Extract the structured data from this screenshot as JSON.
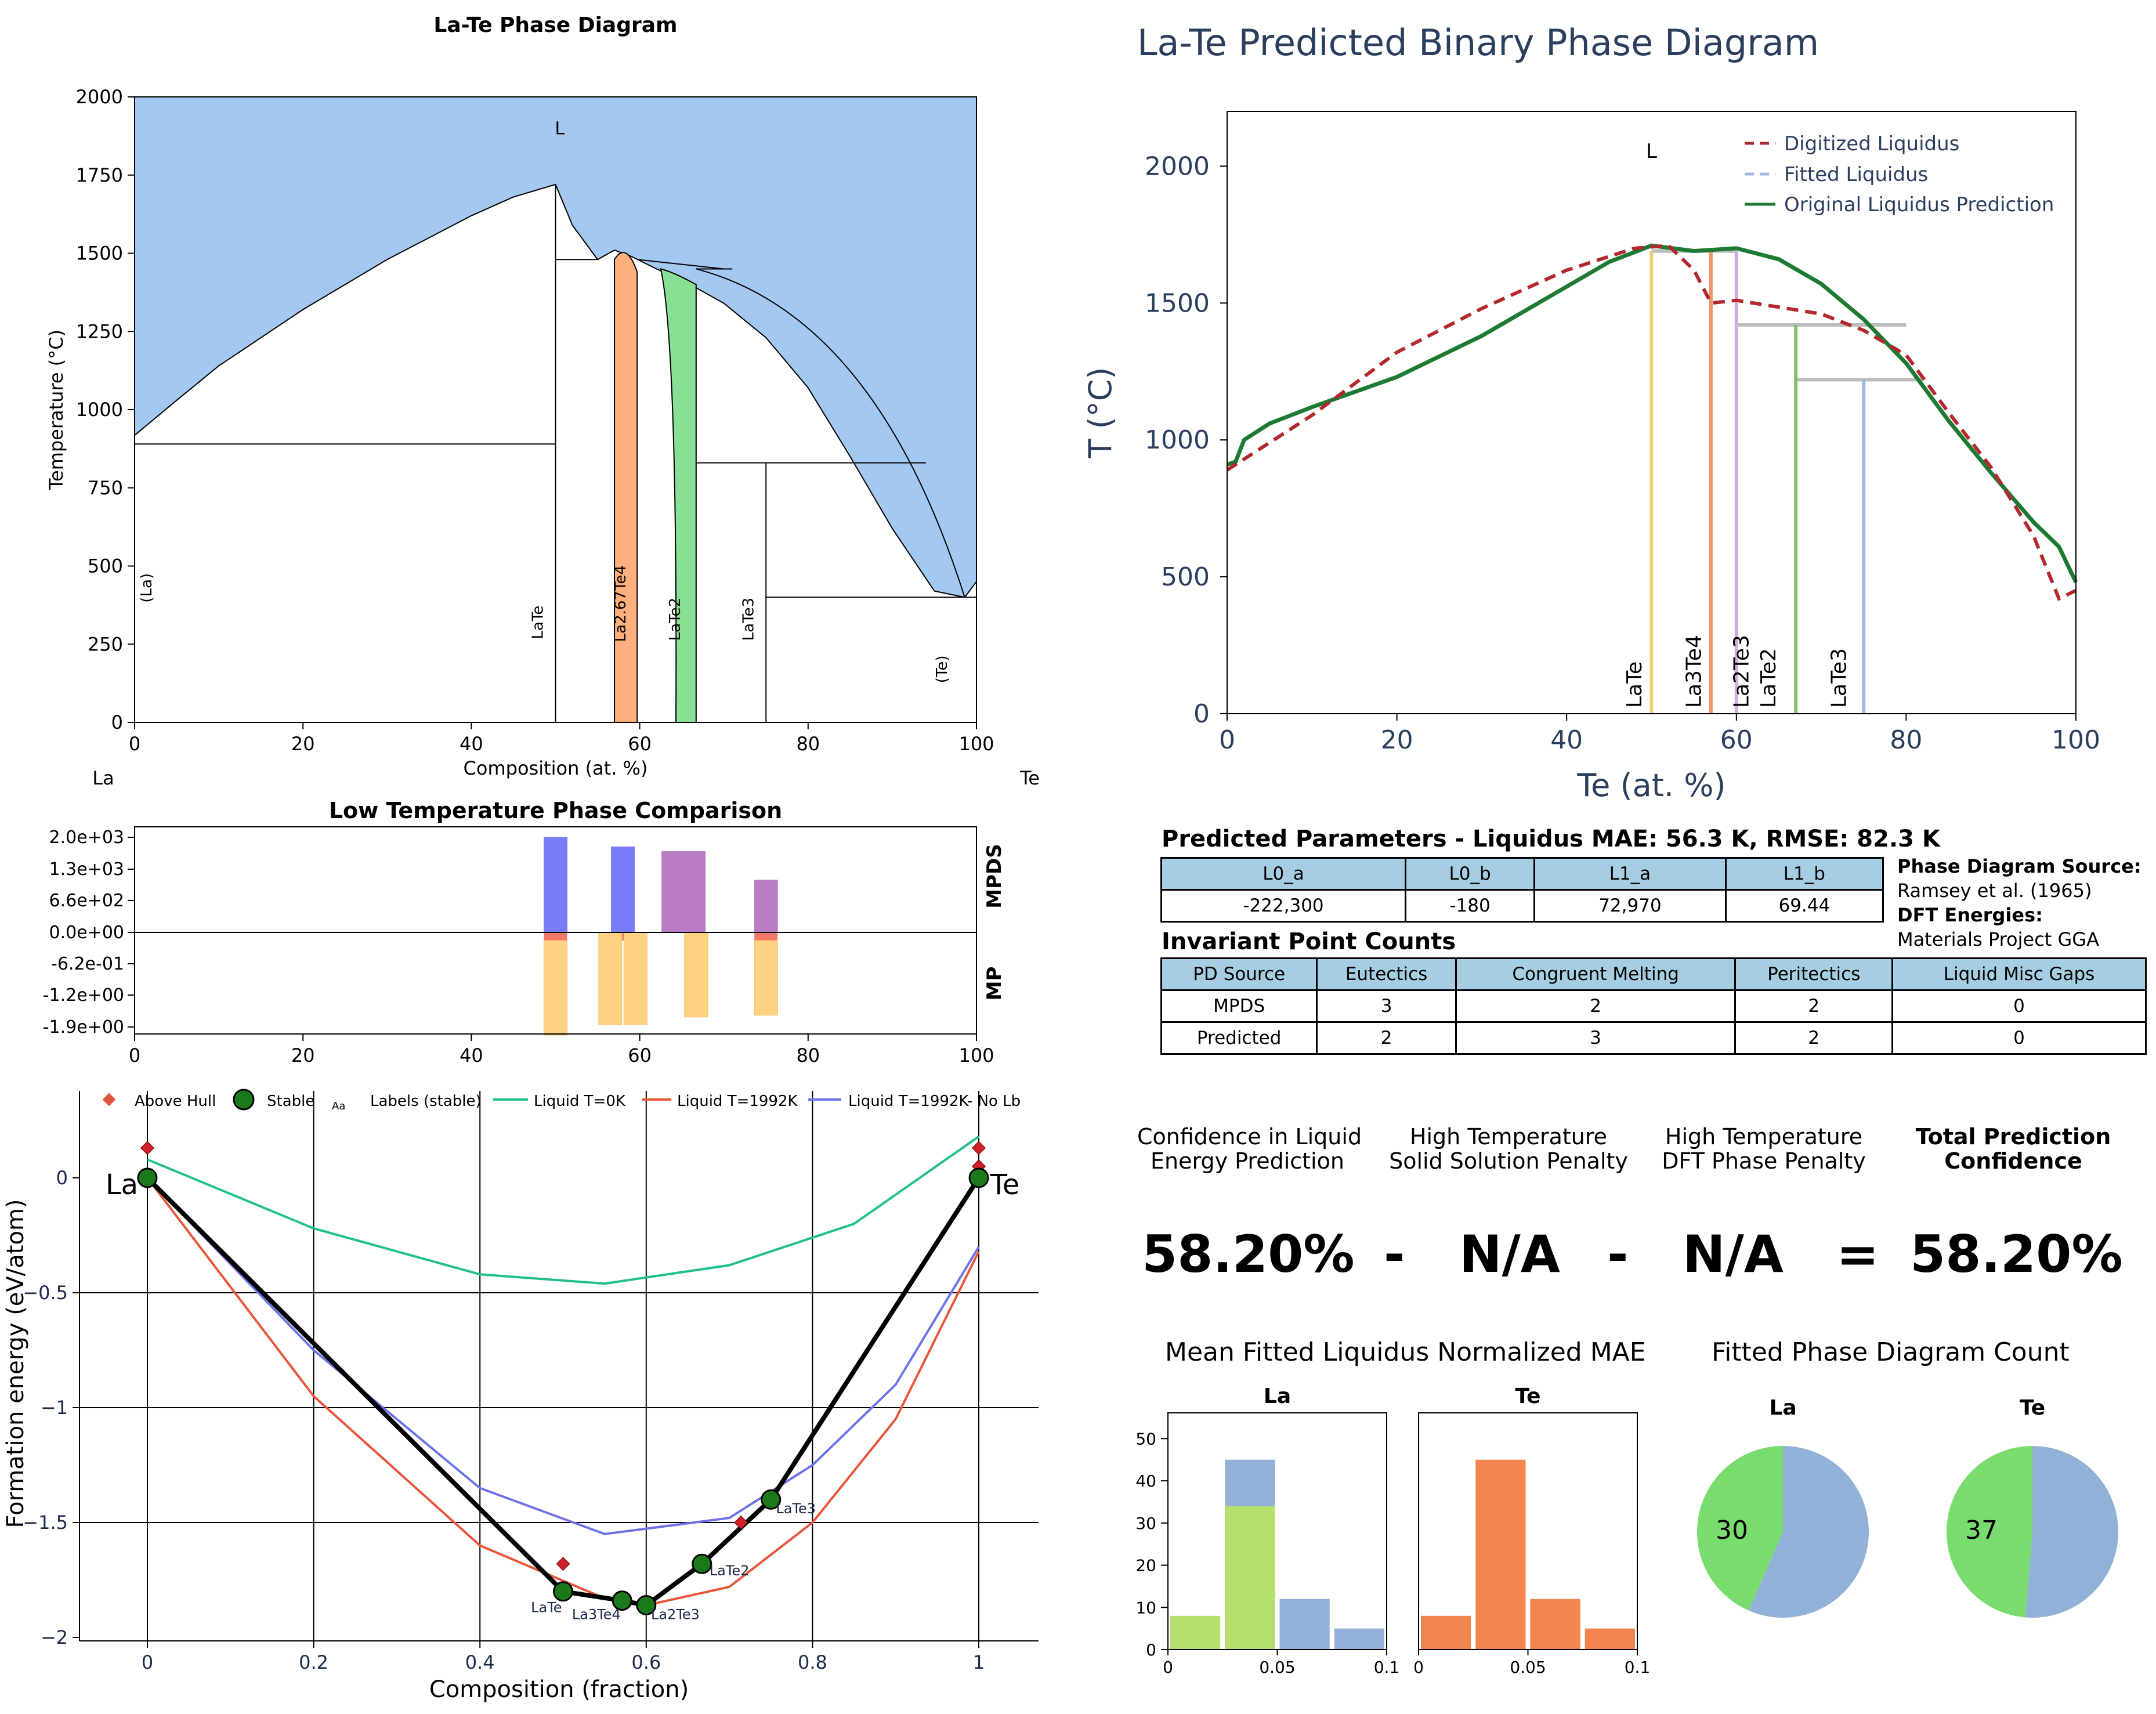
{
  "phase_diagram": {
    "title": "La-Te Phase Diagram",
    "xlabel": "Composition (at. %)",
    "ylabel": "Temperature (°C)",
    "left_element": "La",
    "right_element": "Te",
    "liquid_label": "L",
    "phase_labels": [
      "(La)",
      "LaTe",
      "La2.67Te4",
      "LaTe2",
      "LaTe3",
      "(Te)"
    ],
    "xticks": [
      "0",
      "20",
      "40",
      "60",
      "80",
      "100"
    ],
    "yticks": [
      "0",
      "250",
      "500",
      "750",
      "1000",
      "1250",
      "1500",
      "1750",
      "2000"
    ],
    "colors": {
      "liquid": "#a3c9f3",
      "La2.67Te4": "#fdb07b",
      "LaTe2": "#89df93"
    }
  },
  "low_temp": {
    "title": "Low Temperature Phase Comparison",
    "yticks": [
      "2.0e+03",
      "1.3e+03",
      "6.6e+02",
      "0.0e+00",
      "-6.2e-01",
      "-1.2e+00",
      "-1.9e+00"
    ],
    "xticks": [
      "0",
      "20",
      "40",
      "60",
      "80",
      "100"
    ],
    "right_top": "MPDS",
    "right_bottom": "MP"
  },
  "hull": {
    "xlabel": "Composition (fraction)",
    "ylabel": "Formation energy (eV/atom)",
    "xticks": [
      "0",
      "0.2",
      "0.4",
      "0.6",
      "0.8",
      "1"
    ],
    "yticks": [
      "0",
      "−0.5",
      "−1",
      "−1.5",
      "−2"
    ],
    "legend": [
      "Above Hull",
      "Stable",
      "Labels (stable)",
      "Liquid T=0K",
      "Liquid T=1992K",
      "Liquid T=1992K- No Lb"
    ],
    "legend_aa": "Aa",
    "end_left": "La",
    "end_right": "Te",
    "point_labels": [
      "LaTe",
      "La3Te4",
      "La2Te3",
      "LaTe2",
      "LaTe3"
    ]
  },
  "predicted": {
    "title": "La-Te Predicted Binary Phase Diagram",
    "xlabel": "Te (at. %)",
    "ylabel": "T (°C)",
    "liquid_label": "L",
    "xticks": [
      "0",
      "20",
      "40",
      "60",
      "80",
      "100"
    ],
    "yticks": [
      "0",
      "500",
      "1000",
      "1500",
      "2000"
    ],
    "legend": [
      "Digitized Liquidus",
      "Fitted Liquidus",
      "Original Liquidus Prediction"
    ],
    "phase_labels": [
      "LaTe",
      "La3Te4",
      "La2Te3",
      "LaTe2",
      "LaTe3"
    ]
  },
  "params": {
    "title": "Predicted Parameters - Liquidus MAE: 56.3 K, RMSE: 82.3 K",
    "headers": [
      "L0_a",
      "L0_b",
      "L1_a",
      "L1_b"
    ],
    "values": [
      "-222,300",
      "-180",
      "72,970",
      "69.44"
    ]
  },
  "source": {
    "pd_label": "Phase Diagram Source:",
    "pd_value": "Ramsey et al. (1965)",
    "dft_label": "DFT Energies:",
    "dft_value": "Materials Project GGA"
  },
  "invariants": {
    "title": "Invariant Point Counts",
    "headers": [
      "PD Source",
      "Eutectics",
      "Congruent Melting",
      "Peritectics",
      "Liquid Misc Gaps"
    ],
    "rows": [
      [
        "MPDS",
        "3",
        "2",
        "2",
        "0"
      ],
      [
        "Predicted",
        "2",
        "3",
        "2",
        "0"
      ]
    ]
  },
  "confidence": {
    "label1": "Confidence in Liquid Energy Prediction",
    "label1a": "Confidence in Liquid",
    "label1b": "Energy Prediction",
    "label2a": "High Temperature",
    "label2b": "Solid Solution Penalty",
    "label3a": "High Temperature",
    "label3b": "DFT Phase Penalty",
    "label4a": "Total Prediction",
    "label4b": "Confidence",
    "value1": "58.20%",
    "op1": "-",
    "value2": "N/A",
    "op2": "-",
    "value3": "N/A",
    "op3": "=",
    "value4": "58.20%"
  },
  "mae_hist": {
    "title": "Mean Fitted Liquidus Normalized MAE",
    "panels": [
      "La",
      "Te"
    ],
    "yticks": [
      "0",
      "10",
      "20",
      "30",
      "40",
      "50"
    ],
    "xticks": [
      "0",
      "0.05",
      "0.1"
    ]
  },
  "count_pie": {
    "title": "Fitted Phase Diagram Count",
    "panels": [
      "La",
      "Te"
    ],
    "labels": [
      "30",
      "37"
    ]
  },
  "chart_data": [
    {
      "type": "area",
      "title": "La-Te Phase Diagram",
      "xlabel": "Composition (at. %)",
      "ylabel": "Temperature (°C)",
      "xlim": [
        0,
        100
      ],
      "ylim": [
        0,
        2000
      ],
      "liquidus": {
        "x": [
          0,
          5,
          10,
          20,
          30,
          40,
          45,
          50,
          52,
          55,
          57,
          59,
          62,
          66,
          70,
          75,
          80,
          85,
          90,
          95,
          98.6,
          100
        ],
        "y": [
          918,
          1030,
          1140,
          1320,
          1480,
          1620,
          1680,
          1720,
          1590,
          1480,
          1510,
          1490,
          1450,
          1400,
          1340,
          1230,
          1070,
          850,
          620,
          420,
          400,
          450
        ]
      },
      "invariants_T": [
        890,
        1480,
        1450,
        830,
        400
      ],
      "phases": [
        {
          "name": "LaTe",
          "x": 50,
          "melt": 1720
        },
        {
          "name": "La2.67Te4",
          "x_range": [
            57,
            59.7
          ],
          "melt": 1510
        },
        {
          "name": "LaTe2",
          "x_range": [
            62.5,
            66.7
          ],
          "melt": 1450
        },
        {
          "name": "LaTe3",
          "x": 75,
          "melt": 830
        }
      ]
    },
    {
      "type": "bar",
      "title": "Low Temperature Phase Comparison",
      "series": [
        {
          "name": "MPDS",
          "x": [
            50,
            58,
            64,
            75
          ],
          "values": [
            2000,
            1800,
            1700,
            1100
          ]
        },
        {
          "name": "MP",
          "x": [
            50,
            56.5,
            59.5,
            66.7,
            75
          ],
          "values": [
            -1.9,
            -1.85,
            -1.85,
            -1.7,
            -1.5
          ]
        }
      ],
      "xlim": [
        0,
        100
      ]
    },
    {
      "type": "line",
      "xlabel": "Composition (fraction)",
      "ylabel": "Formation energy (eV/atom)",
      "xlim": [
        0,
        1
      ],
      "ylim": [
        -2,
        0.2
      ],
      "hull": {
        "x": [
          0,
          0.5,
          0.571,
          0.6,
          0.667,
          0.75,
          1
        ],
        "y": [
          0,
          -1.8,
          -1.84,
          -1.86,
          -1.68,
          -1.4,
          0
        ]
      },
      "above_hull": {
        "x": [
          0,
          0.5,
          0.714,
          1,
          1
        ],
        "y": [
          0.13,
          -1.68,
          -1.5,
          0.13,
          0.05
        ]
      },
      "series": [
        {
          "name": "Liquid T=0K",
          "x": [
            0,
            0.2,
            0.4,
            0.55,
            0.7,
            0.85,
            1
          ],
          "values": [
            0.08,
            -0.22,
            -0.42,
            -0.46,
            -0.38,
            -0.2,
            0.18
          ]
        },
        {
          "name": "Liquid T=1992K",
          "x": [
            0,
            0.2,
            0.4,
            0.55,
            0.6,
            0.7,
            0.8,
            0.9,
            1
          ],
          "values": [
            0,
            -0.95,
            -1.6,
            -1.83,
            -1.86,
            -1.78,
            -1.5,
            -1.05,
            -0.32
          ]
        },
        {
          "name": "Liquid T=1992K- No Lb",
          "x": [
            0,
            0.2,
            0.4,
            0.55,
            0.7,
            0.8,
            0.9,
            1
          ],
          "values": [
            0,
            -0.75,
            -1.35,
            -1.55,
            -1.48,
            -1.25,
            -0.9,
            -0.3
          ]
        }
      ]
    },
    {
      "type": "line",
      "title": "La-Te Predicted Binary Phase Diagram",
      "xlabel": "Te (at. %)",
      "ylabel": "T (°C)",
      "xlim": [
        0,
        100
      ],
      "ylim": [
        0,
        2200
      ],
      "series": [
        {
          "name": "Digitized Liquidus",
          "x": [
            0,
            10,
            20,
            30,
            40,
            48,
            52,
            55,
            57,
            60,
            70,
            75,
            80,
            85,
            90,
            95,
            98,
            100
          ],
          "values": [
            890,
            1090,
            1320,
            1480,
            1620,
            1700,
            1710,
            1620,
            1500,
            1510,
            1460,
            1400,
            1310,
            1100,
            900,
            650,
            420,
            450
          ]
        },
        {
          "name": "Original Liquidus Prediction",
          "x": [
            0,
            1,
            2,
            5,
            10,
            20,
            30,
            40,
            45,
            50,
            55,
            60,
            65,
            70,
            75,
            80,
            85,
            90,
            95,
            98,
            100
          ],
          "values": [
            910,
            920,
            1000,
            1060,
            1120,
            1230,
            1380,
            1560,
            1650,
            1710,
            1690,
            1700,
            1660,
            1570,
            1440,
            1280,
            1070,
            880,
            700,
            610,
            480
          ]
        }
      ],
      "phase_lines": [
        {
          "name": "LaTe",
          "x": 50,
          "top": 1690,
          "color": "#f4c97a"
        },
        {
          "name": "La3Te4",
          "x": 57,
          "top": 1690,
          "color": "#f09668"
        },
        {
          "name": "La2Te3",
          "x": 60,
          "top": 1690,
          "color": "#d9a9e6"
        },
        {
          "name": "LaTe2",
          "x": 67,
          "top": 1420,
          "color": "#7cc266"
        },
        {
          "name": "LaTe3",
          "x": 75,
          "top": 1220,
          "color": "#9fb7e4"
        }
      ],
      "horizontal_lines": [
        {
          "x": [
            50,
            57
          ],
          "y": 1690
        },
        {
          "x": [
            60,
            80
          ],
          "y": 1420
        },
        {
          "x": [
            67,
            82
          ],
          "y": 1220
        }
      ]
    },
    {
      "type": "bar",
      "title": "Mean Fitted Liquidus Normalized MAE",
      "panels": [
        {
          "name": "La",
          "bins": [
            0,
            0.025,
            0.05,
            0.075
          ],
          "green": [
            8,
            34,
            0,
            0
          ],
          "blue": [
            0,
            45,
            12,
            5
          ]
        },
        {
          "name": "Te",
          "bins": [
            0,
            0.025,
            0.05,
            0.075
          ],
          "orange": [
            8,
            45,
            12,
            5
          ]
        }
      ],
      "ylim": [
        0,
        55
      ],
      "xlim": [
        0,
        0.1
      ]
    },
    {
      "type": "pie",
      "title": "Fitted Phase Diagram Count",
      "panels": [
        {
          "name": "La",
          "values": [
            30,
            39
          ],
          "colors": [
            "#79dc6f",
            "#92b1d9"
          ]
        },
        {
          "name": "Te",
          "values": [
            37,
            39
          ],
          "colors": [
            "#79dc6f",
            "#92b1d9"
          ]
        }
      ]
    }
  ]
}
